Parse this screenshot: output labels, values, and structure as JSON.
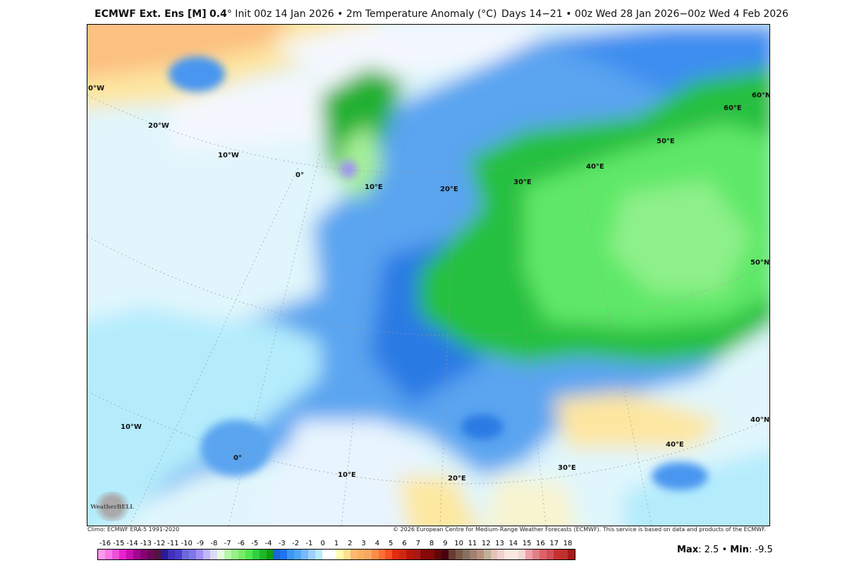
{
  "header": {
    "model": "ECMWF Ext. Ens [M]",
    "resolution": "0.4",
    "init": "° Init 00z 14 Jan 2026 • 2m Temperature Anomaly (°C)",
    "valid": "Days 14−21 • 00z Wed 28 Jan 2026−00z Wed 4 Feb 2026"
  },
  "map": {
    "grid_labels": [
      "0°W",
      "20°W",
      "10°W",
      "0°",
      "10°E",
      "20°E",
      "30°E",
      "40°E",
      "50°E",
      "60°E",
      "60°N",
      "50°N",
      "40°N",
      "40°E",
      "30°E",
      "20°E",
      "10°E",
      "0°",
      "10°W"
    ],
    "logo": "WeatherBELL"
  },
  "footer": {
    "climo": "Climo: ECMWF ERA-5 1991-2020",
    "copyright": "© 2026 European Centre for Medium-Range Weather Forecasts (ECMWF). This service is based on data and products of the ECMWF."
  },
  "colorbar": {
    "labels": [
      "-16",
      "-15",
      "-14",
      "-13",
      "-12",
      "-11",
      "-10",
      "-9",
      "-8",
      "-7",
      "-6",
      "-5",
      "-4",
      "-3",
      "-2",
      "-1",
      "0",
      "1",
      "2",
      "3",
      "4",
      "5",
      "6",
      "7",
      "8",
      "9",
      "10",
      "11",
      "12",
      "13",
      "14",
      "15",
      "16",
      "17",
      "18"
    ],
    "colors": [
      "#ff99ee",
      "#f878e6",
      "#f050d8",
      "#e820d0",
      "#c810b0",
      "#a0088f",
      "#880070",
      "#6a0858",
      "#501540",
      "#2a1a98",
      "#4030b8",
      "#4a3ccc",
      "#6c68dc",
      "#7c78e8",
      "#a090f8",
      "#c0b8f8",
      "#dcdcf8",
      "#e6fce0",
      "#b8f8a8",
      "#98f088",
      "#78ec68",
      "#50e850",
      "#30d040",
      "#1cb828",
      "#10a010",
      "#1866d8",
      "#1e74f0",
      "#3c96f4",
      "#50a8f8",
      "#7ab8fc",
      "#9ed0fc",
      "#b4ecfc",
      "#ffffff",
      "#ffffff",
      "#fefeaa",
      "#fee090",
      "#feb870",
      "#fcb060",
      "#f8a860",
      "#fc8c48",
      "#fc7038",
      "#fc5020",
      "#e02c10",
      "#d02810",
      "#b81808",
      "#a81818",
      "#880808",
      "#880808",
      "#600808",
      "#480010",
      "#683c30",
      "#7c5848",
      "#887060",
      "#a08070",
      "#b89080",
      "#c0b098",
      "#e0c4b8",
      "#f4d0d0",
      "#f8e8e0",
      "#f8e8e0",
      "#f4d8d4",
      "#f0a0a8",
      "#e08088",
      "#e06068",
      "#d05058",
      "#c83030",
      "#c03030",
      "#a81818"
    ]
  },
  "stats": {
    "max_label": "Max",
    "max": "2.5",
    "min_label": "Min",
    "min": "-9.5"
  }
}
